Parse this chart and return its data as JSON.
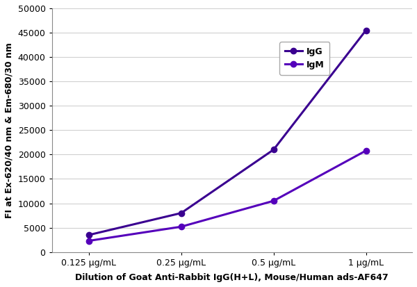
{
  "x_positions": [
    1,
    2,
    3,
    4
  ],
  "x_labels": [
    "0.125 μg/mL",
    "0.25 μg/mL",
    "0.5 μg/mL",
    "1 μg/mL"
  ],
  "IgG_values": [
    3500,
    8000,
    21000,
    45500
  ],
  "IgM_values": [
    2300,
    5200,
    10500,
    20800
  ],
  "IgG_color": "#3a0090",
  "IgM_color": "#5500bb",
  "ylabel": "FI at Ex-620/40 nm & Em-680/30 nm",
  "xlabel": "Dilution of Goat Anti-Rabbit IgG(H+L), Mouse/Human ads-AF647",
  "ylim": [
    0,
    50000
  ],
  "yticks": [
    0,
    5000,
    10000,
    15000,
    20000,
    25000,
    30000,
    35000,
    40000,
    45000,
    50000
  ],
  "ytick_labels": [
    "0",
    "5000",
    "10000",
    "15000",
    "20000",
    "25000",
    "30000",
    "35000",
    "40000",
    "45000",
    "50000"
  ],
  "axis_fontsize": 9,
  "tick_fontsize": 9,
  "legend_IgG": "IgG",
  "legend_IgM": "IgM",
  "marker": "o",
  "linewidth": 2.2,
  "markersize": 6,
  "background_color": "#ffffff",
  "grid_color": "#d0d0d0"
}
